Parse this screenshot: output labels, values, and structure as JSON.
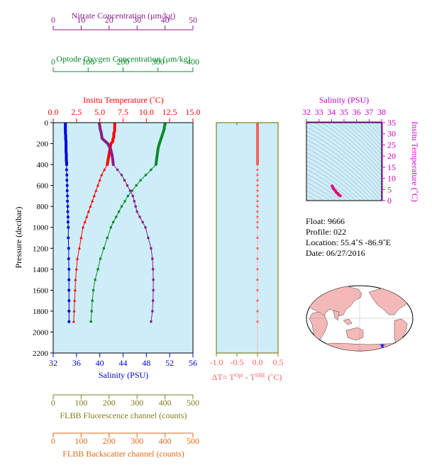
{
  "chart_data": [
    {
      "type": "line",
      "panel": "main-profile",
      "ylabel": "Pressure (decibar)",
      "ylim": [
        0,
        2200
      ],
      "y_ticks": [
        0,
        200,
        400,
        600,
        800,
        1000,
        1200,
        1400,
        1600,
        1800,
        2000,
        2200
      ],
      "axes": {
        "nitrate": {
          "label": "Nitrate Concentration (μm/kg)",
          "range": [
            0,
            50
          ],
          "ticks": [
            0,
            10,
            20,
            30,
            40,
            50
          ],
          "color": "#8b1c8b"
        },
        "oxygen": {
          "label": "Optode Oxygen Concentration (μm/kg)",
          "range": [
            0,
            400
          ],
          "ticks": [
            0,
            100,
            200,
            300,
            400
          ],
          "color": "#0a8a2a"
        },
        "temperature": {
          "label": "Insitu Temperature (˚C)",
          "range": [
            0,
            15
          ],
          "ticks": [
            "0.0",
            "2.5",
            "5.0",
            "7.5",
            "10.0",
            "12.5",
            "15.0"
          ],
          "color": "#ff0000"
        },
        "salinity": {
          "label": "Salinity (PSU)",
          "range": [
            32,
            56
          ],
          "ticks": [
            32,
            36,
            40,
            44,
            48,
            52,
            56
          ],
          "color": "#0000dd"
        },
        "fluorescence": {
          "label": "FLBB Fluorescence channel (counts)",
          "range": [
            0,
            500
          ],
          "ticks": [
            0,
            100,
            200,
            300,
            400,
            500
          ],
          "color": "#7f7f1f"
        },
        "backscatter": {
          "label": "FLBB Backscatter channel (counts)",
          "range": [
            0,
            500
          ],
          "ticks": [
            0,
            100,
            200,
            300,
            400,
            500
          ],
          "color": "#e06a10"
        }
      },
      "series": [
        {
          "name": "Salinity",
          "axis": "salinity",
          "color": "#0000dd",
          "pressure": [
            5,
            20,
            40,
            60,
            80,
            100,
            120,
            140,
            160,
            180,
            200,
            220,
            240,
            260,
            280,
            300,
            320,
            340,
            360,
            380,
            400,
            450,
            500,
            550,
            600,
            650,
            700,
            750,
            800,
            850,
            900,
            950,
            1000,
            1100,
            1200,
            1300,
            1400,
            1500,
            1600,
            1700,
            1800,
            1900
          ],
          "values": [
            34.1,
            34.1,
            34.1,
            34.1,
            34.1,
            34.1,
            34.15,
            34.15,
            34.15,
            34.2,
            34.2,
            34.2,
            34.2,
            34.2,
            34.2,
            34.25,
            34.25,
            34.25,
            34.25,
            34.3,
            34.3,
            34.3,
            34.35,
            34.35,
            34.4,
            34.4,
            34.45,
            34.45,
            34.5,
            34.5,
            34.55,
            34.55,
            34.6,
            34.6,
            34.65,
            34.65,
            34.7,
            34.7,
            34.7,
            34.72,
            34.72,
            34.72
          ]
        },
        {
          "name": "Temperature",
          "axis": "temperature",
          "color": "#ff0000",
          "pressure": [
            5,
            20,
            40,
            60,
            80,
            100,
            120,
            140,
            160,
            180,
            200,
            250,
            300,
            350,
            400,
            450,
            500,
            550,
            600,
            650,
            700,
            750,
            800,
            850,
            900,
            950,
            1000,
            1100,
            1200,
            1300,
            1400,
            1500,
            1600,
            1700,
            1800,
            1900
          ],
          "values": [
            6.6,
            6.6,
            6.6,
            6.6,
            6.6,
            6.5,
            6.5,
            6.5,
            6.4,
            6.4,
            6.2,
            6.1,
            6.0,
            5.9,
            5.8,
            5.5,
            5.2,
            5.0,
            4.8,
            4.6,
            4.4,
            4.2,
            4.0,
            3.8,
            3.6,
            3.4,
            3.2,
            3.0,
            2.8,
            2.6,
            2.5,
            2.4,
            2.35,
            2.3,
            2.25,
            2.2
          ]
        },
        {
          "name": "Oxygen",
          "axis": "oxygen",
          "color": "#0a8a2a",
          "pressure": [
            5,
            20,
            40,
            60,
            80,
            100,
            120,
            140,
            160,
            180,
            200,
            250,
            300,
            350,
            400,
            450,
            500,
            550,
            600,
            650,
            700,
            750,
            800,
            850,
            900,
            950,
            1000,
            1100,
            1200,
            1300,
            1400,
            1500,
            1600,
            1700,
            1800,
            1900
          ],
          "values": [
            320,
            320,
            318,
            318,
            316,
            314,
            312,
            310,
            308,
            306,
            304,
            300,
            298,
            296,
            294,
            280,
            265,
            250,
            238,
            226,
            214,
            205,
            196,
            188,
            180,
            172,
            165,
            155,
            145,
            135,
            128,
            120,
            115,
            112,
            110,
            108
          ]
        },
        {
          "name": "Nitrate",
          "axis": "nitrate",
          "color": "#8b1c8b",
          "pressure": [
            5,
            20,
            40,
            60,
            80,
            100,
            150,
            200,
            250,
            300,
            350,
            400,
            450,
            500,
            550,
            600,
            650,
            700,
            750,
            800,
            850,
            900,
            950,
            1000,
            1100,
            1200,
            1300,
            1400,
            1500,
            1600,
            1700,
            1800,
            1900
          ],
          "values": [
            16.5,
            16.6,
            16.7,
            16.8,
            17.0,
            17.2,
            17.5,
            19.5,
            20.5,
            21.0,
            21.3,
            21.5,
            23.0,
            24.5,
            25.5,
            26.5,
            27.5,
            28.5,
            29.0,
            29.5,
            30.0,
            31.0,
            32.0,
            33.0,
            34.0,
            35.0,
            35.5,
            35.7,
            35.8,
            35.8,
            35.7,
            35.5,
            35.0
          ]
        }
      ]
    },
    {
      "type": "line",
      "panel": "delta-temperature",
      "xlabel": "ΔT= T",
      "xlabel_sup1": "Opt",
      "xlabel_mid": " - T",
      "xlabel_sup2": "SBE",
      "xlabel_tail": " (˚C)",
      "xlim": [
        -1.0,
        0.5
      ],
      "x_ticks": [
        "-1.0",
        "-0.5",
        "0.0",
        "0.5"
      ],
      "ylim": [
        0,
        2200
      ],
      "color": "#ff6060",
      "series": [
        {
          "name": "dT",
          "pressure": [
            5,
            50,
            100,
            150,
            200,
            250,
            300,
            350,
            400,
            450,
            500,
            550,
            600,
            650,
            700,
            750,
            800,
            850,
            900,
            950,
            1000,
            1100,
            1200,
            1300,
            1400,
            1500,
            1600,
            1700,
            1800,
            1900
          ],
          "values": [
            0.0,
            0.0,
            0.0,
            0.0,
            0.0,
            0.0,
            0.0,
            0.0,
            0.0,
            0.0,
            0.0,
            0.0,
            0.0,
            0.0,
            0.0,
            0.0,
            0.0,
            0.0,
            0.0,
            0.0,
            0.0,
            0.0,
            0.0,
            0.0,
            0.0,
            0.0,
            0.0,
            0.0,
            0.0,
            0.0
          ]
        }
      ]
    },
    {
      "type": "scatter",
      "panel": "ts-diagram",
      "xlabel": "Salinity (PSU)",
      "ylabel": "Insitu Temperature (˚C)",
      "xlim": [
        32,
        38
      ],
      "ylim": [
        0,
        35
      ],
      "x_ticks": [
        32,
        33,
        34,
        35,
        36,
        37,
        38
      ],
      "y_ticks": [
        0,
        5,
        10,
        15,
        20,
        25,
        30,
        35
      ],
      "color": "#e0007a",
      "points": [
        [
          34.05,
          6.6
        ],
        [
          34.1,
          6.0
        ],
        [
          34.15,
          5.5
        ],
        [
          34.2,
          5.0
        ],
        [
          34.3,
          4.5
        ],
        [
          34.35,
          4.0
        ],
        [
          34.4,
          3.6
        ],
        [
          34.5,
          3.2
        ],
        [
          34.55,
          2.8
        ],
        [
          34.6,
          2.5
        ],
        [
          34.7,
          2.2
        ]
      ]
    }
  ],
  "info": {
    "float": "Float:  9666",
    "profile": "Profile:  022",
    "location": "Location:  55.4˚S  -86.9˚E",
    "date": "Date:  06/27/2016"
  },
  "map": {
    "marker": "float-position",
    "lat": -55.4,
    "lon": -86.9,
    "marker_color": "#1a1aff",
    "land_color": "#f4b8b8",
    "ocean_color": "#ffffff"
  }
}
